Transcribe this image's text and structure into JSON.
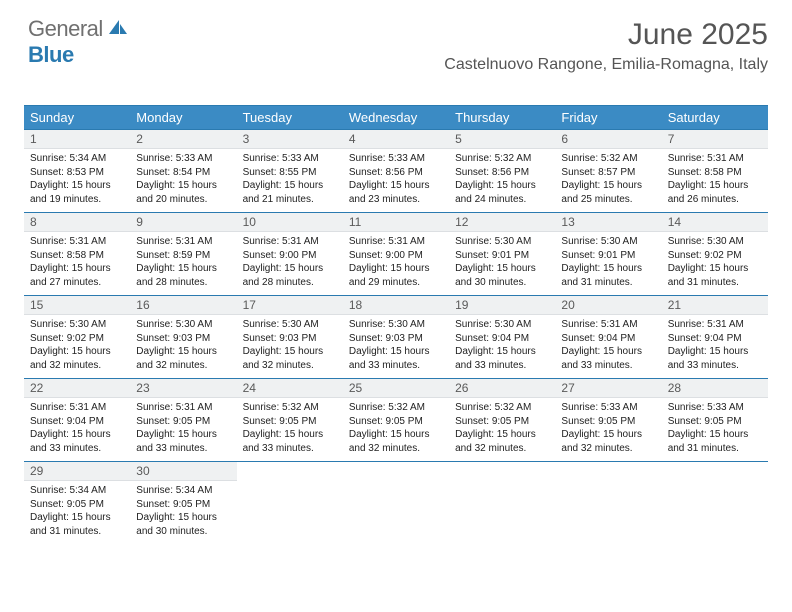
{
  "logo": {
    "textGray": "General",
    "textBlue": "Blue"
  },
  "header": {
    "title": "June 2025",
    "location": "Castelnuovo Rangone, Emilia-Romagna, Italy"
  },
  "colors": {
    "headerBg": "#3b8bc4",
    "headerText": "#ffffff",
    "ruleBlue": "#2a7ab0",
    "dayNumBg": "#eff1f2"
  },
  "dayNames": [
    "Sunday",
    "Monday",
    "Tuesday",
    "Wednesday",
    "Thursday",
    "Friday",
    "Saturday"
  ],
  "weeks": [
    [
      {
        "n": "1",
        "sr": "5:34 AM",
        "ss": "8:53 PM",
        "dl": "15 hours and 19 minutes."
      },
      {
        "n": "2",
        "sr": "5:33 AM",
        "ss": "8:54 PM",
        "dl": "15 hours and 20 minutes."
      },
      {
        "n": "3",
        "sr": "5:33 AM",
        "ss": "8:55 PM",
        "dl": "15 hours and 21 minutes."
      },
      {
        "n": "4",
        "sr": "5:33 AM",
        "ss": "8:56 PM",
        "dl": "15 hours and 23 minutes."
      },
      {
        "n": "5",
        "sr": "5:32 AM",
        "ss": "8:56 PM",
        "dl": "15 hours and 24 minutes."
      },
      {
        "n": "6",
        "sr": "5:32 AM",
        "ss": "8:57 PM",
        "dl": "15 hours and 25 minutes."
      },
      {
        "n": "7",
        "sr": "5:31 AM",
        "ss": "8:58 PM",
        "dl": "15 hours and 26 minutes."
      }
    ],
    [
      {
        "n": "8",
        "sr": "5:31 AM",
        "ss": "8:58 PM",
        "dl": "15 hours and 27 minutes."
      },
      {
        "n": "9",
        "sr": "5:31 AM",
        "ss": "8:59 PM",
        "dl": "15 hours and 28 minutes."
      },
      {
        "n": "10",
        "sr": "5:31 AM",
        "ss": "9:00 PM",
        "dl": "15 hours and 28 minutes."
      },
      {
        "n": "11",
        "sr": "5:31 AM",
        "ss": "9:00 PM",
        "dl": "15 hours and 29 minutes."
      },
      {
        "n": "12",
        "sr": "5:30 AM",
        "ss": "9:01 PM",
        "dl": "15 hours and 30 minutes."
      },
      {
        "n": "13",
        "sr": "5:30 AM",
        "ss": "9:01 PM",
        "dl": "15 hours and 31 minutes."
      },
      {
        "n": "14",
        "sr": "5:30 AM",
        "ss": "9:02 PM",
        "dl": "15 hours and 31 minutes."
      }
    ],
    [
      {
        "n": "15",
        "sr": "5:30 AM",
        "ss": "9:02 PM",
        "dl": "15 hours and 32 minutes."
      },
      {
        "n": "16",
        "sr": "5:30 AM",
        "ss": "9:03 PM",
        "dl": "15 hours and 32 minutes."
      },
      {
        "n": "17",
        "sr": "5:30 AM",
        "ss": "9:03 PM",
        "dl": "15 hours and 32 minutes."
      },
      {
        "n": "18",
        "sr": "5:30 AM",
        "ss": "9:03 PM",
        "dl": "15 hours and 33 minutes."
      },
      {
        "n": "19",
        "sr": "5:30 AM",
        "ss": "9:04 PM",
        "dl": "15 hours and 33 minutes."
      },
      {
        "n": "20",
        "sr": "5:31 AM",
        "ss": "9:04 PM",
        "dl": "15 hours and 33 minutes."
      },
      {
        "n": "21",
        "sr": "5:31 AM",
        "ss": "9:04 PM",
        "dl": "15 hours and 33 minutes."
      }
    ],
    [
      {
        "n": "22",
        "sr": "5:31 AM",
        "ss": "9:04 PM",
        "dl": "15 hours and 33 minutes."
      },
      {
        "n": "23",
        "sr": "5:31 AM",
        "ss": "9:05 PM",
        "dl": "15 hours and 33 minutes."
      },
      {
        "n": "24",
        "sr": "5:32 AM",
        "ss": "9:05 PM",
        "dl": "15 hours and 33 minutes."
      },
      {
        "n": "25",
        "sr": "5:32 AM",
        "ss": "9:05 PM",
        "dl": "15 hours and 32 minutes."
      },
      {
        "n": "26",
        "sr": "5:32 AM",
        "ss": "9:05 PM",
        "dl": "15 hours and 32 minutes."
      },
      {
        "n": "27",
        "sr": "5:33 AM",
        "ss": "9:05 PM",
        "dl": "15 hours and 32 minutes."
      },
      {
        "n": "28",
        "sr": "5:33 AM",
        "ss": "9:05 PM",
        "dl": "15 hours and 31 minutes."
      }
    ],
    [
      {
        "n": "29",
        "sr": "5:34 AM",
        "ss": "9:05 PM",
        "dl": "15 hours and 31 minutes."
      },
      {
        "n": "30",
        "sr": "5:34 AM",
        "ss": "9:05 PM",
        "dl": "15 hours and 30 minutes."
      },
      null,
      null,
      null,
      null,
      null
    ]
  ],
  "labels": {
    "sunrise": "Sunrise: ",
    "sunset": "Sunset: ",
    "daylight": "Daylight: "
  }
}
